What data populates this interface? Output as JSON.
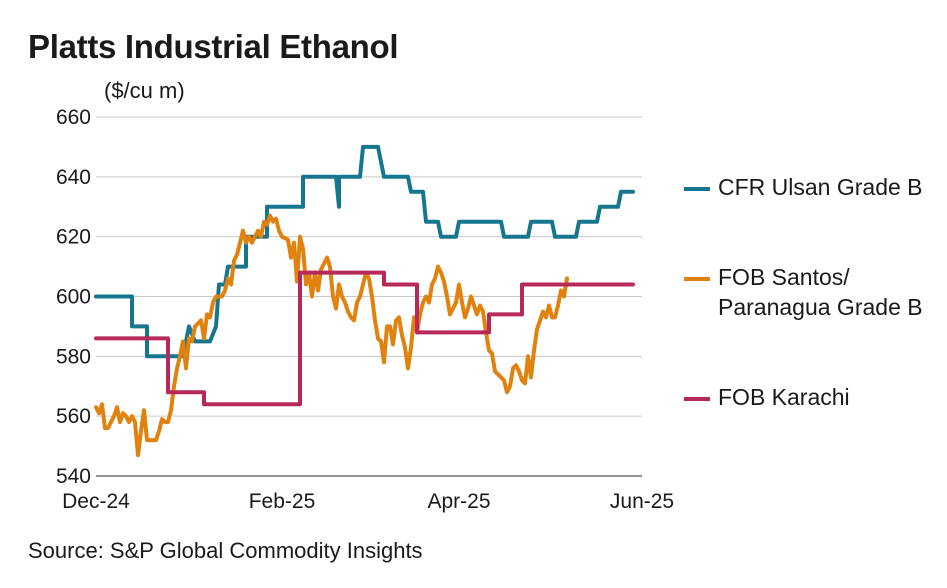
{
  "title": "Platts Industrial Ethanol",
  "unit": "($/cu m)",
  "source": "Source: S&P Global Commodity Insights",
  "chart_data": {
    "type": "line",
    "title": "Platts Industrial Ethanol",
    "ylabel": "($/cu m)",
    "xlabel": "",
    "ylim": [
      540,
      660
    ],
    "yticks": [
      540,
      560,
      580,
      600,
      620,
      640,
      660
    ],
    "xticks": [
      {
        "x": 0,
        "label": "Dec-24"
      },
      {
        "x": 62,
        "label": "Feb-25"
      },
      {
        "x": 121,
        "label": "Apr-25"
      },
      {
        "x": 182,
        "label": "Jun-25"
      }
    ],
    "x_unit": "days from start of Dec-24",
    "xlim": [
      0,
      182
    ],
    "grid": "horizontal",
    "legend_position": "right",
    "series": [
      {
        "name": "CFR Ulsan Grade B",
        "color": "#17768F",
        "points": [
          [
            0,
            600
          ],
          [
            12,
            600
          ],
          [
            12,
            590
          ],
          [
            17,
            590
          ],
          [
            17,
            580
          ],
          [
            29,
            580
          ],
          [
            31,
            590
          ],
          [
            33,
            585
          ],
          [
            38,
            585
          ],
          [
            40,
            590
          ],
          [
            41,
            604
          ],
          [
            43,
            604
          ],
          [
            44,
            610
          ],
          [
            50,
            610
          ],
          [
            50,
            620
          ],
          [
            57,
            620
          ],
          [
            57,
            630
          ],
          [
            69,
            630
          ],
          [
            69,
            640
          ],
          [
            80,
            640
          ],
          [
            81,
            630
          ],
          [
            81,
            640
          ],
          [
            88,
            640
          ],
          [
            89,
            650
          ],
          [
            94,
            650
          ],
          [
            96,
            640
          ],
          [
            104,
            640
          ],
          [
            105,
            635
          ],
          [
            109,
            635
          ],
          [
            110,
            625
          ],
          [
            114,
            625
          ],
          [
            115,
            620
          ],
          [
            120,
            620
          ],
          [
            121,
            625
          ],
          [
            135,
            625
          ],
          [
            136,
            620
          ],
          [
            144,
            620
          ],
          [
            145,
            625
          ],
          [
            152,
            625
          ],
          [
            153,
            620
          ],
          [
            160,
            620
          ],
          [
            161,
            625
          ],
          [
            167,
            625
          ],
          [
            168,
            630
          ],
          [
            174,
            630
          ],
          [
            175,
            635
          ],
          [
            179,
            635
          ]
        ]
      },
      {
        "name": "FOB Santos/ Paranagua Grade B",
        "color": "#E1820E",
        "points": [
          [
            0,
            563
          ],
          [
            1,
            561
          ],
          [
            2,
            564
          ],
          [
            3,
            556
          ],
          [
            4,
            556
          ],
          [
            6,
            560
          ],
          [
            7,
            563
          ],
          [
            8,
            558
          ],
          [
            9,
            561
          ],
          [
            10,
            560
          ],
          [
            11,
            558
          ],
          [
            12,
            560
          ],
          [
            13,
            558
          ],
          [
            14,
            547
          ],
          [
            15,
            555
          ],
          [
            16,
            562
          ],
          [
            17,
            552
          ],
          [
            18,
            552
          ],
          [
            20,
            552
          ],
          [
            21,
            555
          ],
          [
            22,
            559
          ],
          [
            23,
            558
          ],
          [
            24,
            558
          ],
          [
            25,
            562
          ],
          [
            26,
            570
          ],
          [
            27,
            576
          ],
          [
            28,
            580
          ],
          [
            29,
            585
          ],
          [
            30,
            576
          ],
          [
            31,
            586
          ],
          [
            32,
            585
          ],
          [
            33,
            590
          ],
          [
            34,
            591
          ],
          [
            35,
            592
          ],
          [
            36,
            586
          ],
          [
            37,
            594
          ],
          [
            38,
            593
          ],
          [
            39,
            598
          ],
          [
            40,
            600
          ],
          [
            42,
            600
          ],
          [
            43,
            602
          ],
          [
            44,
            606
          ],
          [
            45,
            604
          ],
          [
            46,
            612
          ],
          [
            47,
            614
          ],
          [
            48,
            618
          ],
          [
            49,
            622
          ],
          [
            50,
            618
          ],
          [
            51,
            620
          ],
          [
            52,
            618
          ],
          [
            54,
            622
          ],
          [
            55,
            620
          ],
          [
            56,
            625
          ],
          [
            57,
            624
          ],
          [
            58,
            627
          ],
          [
            59,
            625
          ],
          [
            60,
            626
          ],
          [
            61,
            622
          ],
          [
            62,
            620
          ],
          [
            64,
            619
          ],
          [
            65,
            613
          ],
          [
            66,
            618
          ],
          [
            67,
            605
          ],
          [
            68,
            620
          ],
          [
            69,
            616
          ],
          [
            70,
            604
          ],
          [
            71,
            608
          ],
          [
            72,
            600
          ],
          [
            73,
            608
          ],
          [
            74,
            602
          ],
          [
            75,
            609
          ],
          [
            76,
            611
          ],
          [
            77,
            613
          ],
          [
            78,
            610
          ],
          [
            79,
            600
          ],
          [
            80,
            596
          ],
          [
            81,
            604
          ],
          [
            82,
            600
          ],
          [
            83,
            598
          ],
          [
            84,
            595
          ],
          [
            85,
            593
          ],
          [
            86,
            592
          ],
          [
            87,
            598
          ],
          [
            88,
            600
          ],
          [
            89,
            604
          ],
          [
            90,
            608
          ],
          [
            91,
            606
          ],
          [
            92,
            600
          ],
          [
            93,
            592
          ],
          [
            94,
            586
          ],
          [
            95,
            585
          ],
          [
            96,
            578
          ],
          [
            97,
            590
          ],
          [
            98,
            590
          ],
          [
            99,
            584
          ],
          [
            100,
            592
          ],
          [
            101,
            593
          ],
          [
            102,
            587
          ],
          [
            103,
            583
          ],
          [
            104,
            576
          ],
          [
            105,
            583
          ],
          [
            106,
            593
          ],
          [
            107,
            588
          ],
          [
            108,
            594
          ],
          [
            109,
            598
          ],
          [
            110,
            600
          ],
          [
            111,
            598
          ],
          [
            112,
            604
          ],
          [
            113,
            606
          ],
          [
            114,
            610
          ],
          [
            115,
            608
          ],
          [
            116,
            605
          ],
          [
            117,
            600
          ],
          [
            118,
            594
          ],
          [
            119,
            596
          ],
          [
            120,
            598
          ],
          [
            121,
            604
          ],
          [
            122,
            598
          ],
          [
            123,
            593
          ],
          [
            124,
            596
          ],
          [
            125,
            600
          ],
          [
            126,
            597
          ],
          [
            127,
            594
          ],
          [
            128,
            597
          ],
          [
            129,
            595
          ],
          [
            130,
            588
          ],
          [
            131,
            582
          ],
          [
            132,
            581
          ],
          [
            133,
            575
          ],
          [
            134,
            574
          ],
          [
            135,
            573
          ],
          [
            136,
            572
          ],
          [
            137,
            568
          ],
          [
            138,
            570
          ],
          [
            139,
            576
          ],
          [
            140,
            577
          ],
          [
            141,
            575
          ],
          [
            142,
            572
          ],
          [
            143,
            571
          ],
          [
            144,
            580
          ],
          [
            145,
            573
          ],
          [
            146,
            582
          ],
          [
            147,
            589
          ],
          [
            148,
            592
          ],
          [
            149,
            595
          ],
          [
            150,
            593
          ],
          [
            151,
            597
          ],
          [
            152,
            593
          ],
          [
            153,
            593
          ],
          [
            154,
            597
          ],
          [
            155,
            602
          ],
          [
            156,
            600
          ],
          [
            157,
            606
          ]
        ]
      },
      {
        "name": "FOB Karachi",
        "color": "#B7295A",
        "points": [
          [
            0,
            586
          ],
          [
            24,
            586
          ],
          [
            24,
            568
          ],
          [
            36,
            568
          ],
          [
            36,
            564
          ],
          [
            68,
            564
          ],
          [
            68,
            608
          ],
          [
            96,
            608
          ],
          [
            96,
            604
          ],
          [
            107,
            604
          ],
          [
            107,
            588
          ],
          [
            131,
            588
          ],
          [
            131,
            594
          ],
          [
            142,
            594
          ],
          [
            142,
            604
          ],
          [
            179,
            604
          ]
        ]
      }
    ]
  },
  "legend": [
    {
      "label": "CFR Ulsan Grade B",
      "color": "#17768F"
    },
    {
      "label": "FOB Santos/ Paranagua Grade B",
      "color": "#E1820E"
    },
    {
      "label": "FOB Karachi",
      "color": "#B7295A"
    }
  ]
}
